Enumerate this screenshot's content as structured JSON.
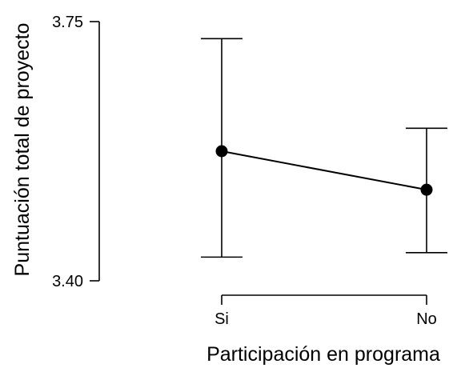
{
  "chart_data": {
    "type": "line",
    "title": "",
    "xlabel": "Participación en programa",
    "ylabel": "Puntuación total de proyecto",
    "categories": [
      "Si",
      "No"
    ],
    "series": [
      {
        "values": [
          3.575,
          3.523
        ],
        "ci_low": [
          3.432,
          3.438
        ],
        "ci_high": [
          3.727,
          3.606
        ]
      }
    ],
    "ylim": [
      3.4,
      3.75
    ],
    "yticks": [
      "3.75",
      "3.40"
    ],
    "ytick_values": [
      3.75,
      3.4
    ],
    "grid": false,
    "legend": "none",
    "colors": {
      "ink": "#000000",
      "background": "#ffffff"
    }
  }
}
